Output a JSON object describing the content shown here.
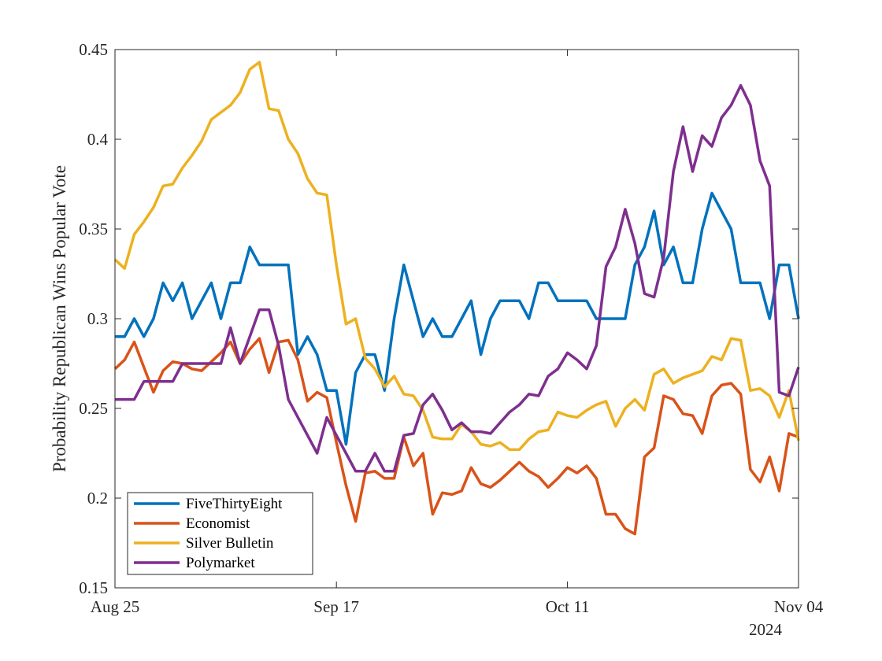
{
  "chart_data": {
    "type": "line",
    "title": "",
    "xlabel": "",
    "ylabel": "Probability Republican Wins Popular Vote",
    "x_ticks": [
      {
        "label": "Aug 25",
        "day": 0
      },
      {
        "label": "Sep 17",
        "day": 23
      },
      {
        "label": "Oct 11",
        "day": 47
      },
      {
        "label": "Nov 04",
        "day": 71
      }
    ],
    "x_year_label": "2024",
    "xlim": [
      "Aug 25",
      "Nov 04"
    ],
    "ylim": [
      0.15,
      0.45
    ],
    "y_ticks": [
      "0.15",
      "0.2",
      "0.25",
      "0.3",
      "0.35",
      "0.4",
      "0.45"
    ],
    "grid": false,
    "legend_position": "bottom-left",
    "series": [
      {
        "name": "FiveThirtyEight",
        "color": "#0072BD",
        "x": [
          0,
          1,
          2,
          3,
          4,
          5,
          6,
          7,
          8,
          9,
          10,
          11,
          12,
          13,
          14,
          15,
          16,
          17,
          18,
          19,
          20,
          21,
          22,
          23,
          24,
          25,
          26,
          27,
          28,
          29,
          30,
          31,
          32,
          33,
          34,
          35,
          36,
          37,
          38,
          39,
          40,
          41,
          42,
          43,
          44,
          45,
          46,
          47,
          48,
          49,
          50,
          51,
          52,
          53,
          54,
          55,
          56,
          57,
          58,
          59,
          60,
          61,
          62,
          63,
          64,
          65,
          66,
          67,
          68,
          69,
          70,
          71
        ],
        "values": [
          0.29,
          0.29,
          0.3,
          0.29,
          0.3,
          0.32,
          0.31,
          0.32,
          0.3,
          0.31,
          0.32,
          0.3,
          0.32,
          0.32,
          0.34,
          0.33,
          0.33,
          0.33,
          0.33,
          0.28,
          0.29,
          0.28,
          0.26,
          0.26,
          0.23,
          0.27,
          0.28,
          0.28,
          0.26,
          0.3,
          0.33,
          0.31,
          0.29,
          0.3,
          0.29,
          0.29,
          0.3,
          0.31,
          0.28,
          0.3,
          0.31,
          0.31,
          0.31,
          0.3,
          0.32,
          0.32,
          0.31,
          0.31,
          0.31,
          0.31,
          0.3,
          0.3,
          0.3,
          0.3,
          0.33,
          0.34,
          0.36,
          0.33,
          0.34,
          0.32,
          0.32,
          0.35,
          0.37,
          0.36,
          0.35,
          0.32,
          0.32,
          0.32,
          0.3,
          0.33,
          0.33,
          0.3
        ]
      },
      {
        "name": "Economist",
        "color": "#D95319",
        "x": [
          0,
          1,
          2,
          3,
          4,
          5,
          6,
          7,
          8,
          9,
          10,
          11,
          12,
          13,
          14,
          15,
          16,
          17,
          18,
          19,
          20,
          21,
          22,
          23,
          24,
          25,
          26,
          27,
          28,
          29,
          30,
          31,
          32,
          33,
          34,
          35,
          36,
          37,
          38,
          39,
          40,
          41,
          42,
          43,
          44,
          45,
          46,
          47,
          48,
          49,
          50,
          51,
          52,
          53,
          54,
          55,
          56,
          57,
          58,
          59,
          60,
          61,
          62,
          63,
          64,
          65,
          66,
          67,
          68,
          69,
          70,
          71
        ],
        "values": [
          0.272,
          0.277,
          0.287,
          0.273,
          0.259,
          0.271,
          0.276,
          0.275,
          0.272,
          0.271,
          0.276,
          0.281,
          0.287,
          0.275,
          0.283,
          0.289,
          0.27,
          0.287,
          0.288,
          0.277,
          0.254,
          0.259,
          0.256,
          0.231,
          0.207,
          0.187,
          0.214,
          0.215,
          0.211,
          0.211,
          0.234,
          0.218,
          0.225,
          0.191,
          0.203,
          0.202,
          0.204,
          0.217,
          0.208,
          0.206,
          0.21,
          0.215,
          0.22,
          0.215,
          0.212,
          0.206,
          0.211,
          0.217,
          0.214,
          0.218,
          0.211,
          0.191,
          0.191,
          0.183,
          0.18,
          0.223,
          0.228,
          0.257,
          0.255,
          0.247,
          0.246,
          0.236,
          0.257,
          0.263,
          0.264,
          0.258,
          0.216,
          0.209,
          0.223,
          0.204,
          0.236,
          0.234
        ]
      },
      {
        "name": "Silver Bulletin",
        "color": "#EDB120",
        "x": [
          0,
          1,
          2,
          3,
          4,
          5,
          6,
          7,
          8,
          9,
          10,
          11,
          12,
          13,
          14,
          15,
          16,
          17,
          18,
          19,
          20,
          21,
          22,
          23,
          24,
          25,
          26,
          27,
          28,
          29,
          30,
          31,
          32,
          33,
          34,
          35,
          36,
          37,
          38,
          39,
          40,
          41,
          42,
          43,
          44,
          45,
          46,
          47,
          48,
          49,
          50,
          51,
          52,
          53,
          54,
          55,
          56,
          57,
          58,
          59,
          60,
          61,
          62,
          63,
          64,
          65,
          66,
          67,
          68,
          69,
          70,
          71
        ],
        "values": [
          0.333,
          0.328,
          0.347,
          0.354,
          0.362,
          0.374,
          0.375,
          0.384,
          0.391,
          0.399,
          0.411,
          0.415,
          0.419,
          0.426,
          0.439,
          0.443,
          0.417,
          0.416,
          0.4,
          0.392,
          0.378,
          0.37,
          0.369,
          0.33,
          0.297,
          0.3,
          0.278,
          0.272,
          0.262,
          0.268,
          0.258,
          0.257,
          0.249,
          0.234,
          0.233,
          0.233,
          0.241,
          0.237,
          0.23,
          0.229,
          0.231,
          0.227,
          0.227,
          0.233,
          0.237,
          0.238,
          0.248,
          0.246,
          0.245,
          0.249,
          0.252,
          0.254,
          0.24,
          0.25,
          0.255,
          0.249,
          0.269,
          0.272,
          0.264,
          0.267,
          0.269,
          0.271,
          0.279,
          0.277,
          0.289,
          0.288,
          0.26,
          0.261,
          0.257,
          0.245,
          0.26,
          0.232
        ]
      },
      {
        "name": "Polymarket",
        "color": "#7E2F8E",
        "x": [
          0,
          1,
          2,
          3,
          4,
          5,
          6,
          7,
          8,
          9,
          10,
          11,
          12,
          13,
          14,
          15,
          16,
          17,
          18,
          19,
          20,
          21,
          22,
          23,
          24,
          25,
          26,
          27,
          28,
          29,
          30,
          31,
          32,
          33,
          34,
          35,
          36,
          37,
          38,
          39,
          40,
          41,
          42,
          43,
          44,
          45,
          46,
          47,
          48,
          49,
          50,
          51,
          52,
          53,
          54,
          55,
          56,
          57,
          58,
          59,
          60,
          61,
          62,
          63,
          64,
          65,
          66,
          67,
          68,
          69,
          70,
          71
        ],
        "values": [
          0.255,
          0.255,
          0.255,
          0.265,
          0.265,
          0.265,
          0.265,
          0.275,
          0.275,
          0.275,
          0.275,
          0.275,
          0.295,
          0.275,
          0.29,
          0.305,
          0.305,
          0.285,
          0.255,
          0.245,
          0.235,
          0.225,
          0.245,
          0.235,
          0.225,
          0.215,
          0.215,
          0.225,
          0.215,
          0.215,
          0.235,
          0.236,
          0.252,
          0.258,
          0.249,
          0.238,
          0.242,
          0.237,
          0.237,
          0.236,
          0.242,
          0.248,
          0.252,
          0.258,
          0.257,
          0.268,
          0.272,
          0.281,
          0.277,
          0.272,
          0.285,
          0.329,
          0.34,
          0.361,
          0.342,
          0.314,
          0.312,
          0.334,
          0.382,
          0.407,
          0.382,
          0.402,
          0.396,
          0.412,
          0.419,
          0.43,
          0.419,
          0.388,
          0.374,
          0.259,
          0.257,
          0.273
        ]
      }
    ]
  }
}
